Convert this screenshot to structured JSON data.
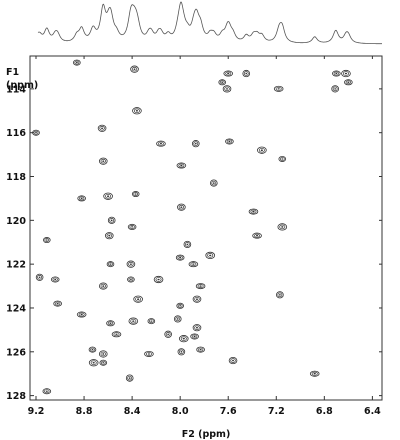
{
  "chart_data": {
    "type": "scatter",
    "subtype": "2D HSQC NMR contour spectrum",
    "title": "",
    "xlabel": "F2 (ppm)",
    "ylabel_line1": "F1",
    "ylabel_line2": "(ppm)",
    "xlim": [
      9.25,
      6.32
    ],
    "ylim": [
      112.5,
      128.2
    ],
    "x_reversed": true,
    "y_increasing_downward": true,
    "grid": false,
    "legend": "none",
    "x_ticks": [
      "9.2",
      "8.8",
      "8.4",
      "8.0",
      "7.6",
      "7.2",
      "6.8",
      "6.4"
    ],
    "x_tick_values": [
      9.2,
      8.8,
      8.4,
      8.0,
      7.6,
      7.2,
      6.8,
      6.4
    ],
    "y_ticks": [
      "114",
      "116",
      "118",
      "120",
      "122",
      "124",
      "126",
      "128"
    ],
    "y_tick_values": [
      114,
      116,
      118,
      120,
      122,
      124,
      126,
      128
    ],
    "projection_trace": "1D proton projection along F2 (top)",
    "contour_color": "#333333",
    "peaks": [
      {
        "x": 8.86,
        "y": 112.8
      },
      {
        "x": 8.38,
        "y": 113.1
      },
      {
        "x": 7.6,
        "y": 113.3
      },
      {
        "x": 7.45,
        "y": 113.3
      },
      {
        "x": 6.7,
        "y": 113.3
      },
      {
        "x": 6.62,
        "y": 113.3
      },
      {
        "x": 7.65,
        "y": 113.7
      },
      {
        "x": 7.61,
        "y": 114.0
      },
      {
        "x": 7.18,
        "y": 114.0
      },
      {
        "x": 6.71,
        "y": 114.0
      },
      {
        "x": 6.6,
        "y": 113.7
      },
      {
        "x": 8.36,
        "y": 115.0
      },
      {
        "x": 9.2,
        "y": 116.0
      },
      {
        "x": 8.65,
        "y": 115.8
      },
      {
        "x": 8.16,
        "y": 116.5
      },
      {
        "x": 7.87,
        "y": 116.5
      },
      {
        "x": 7.59,
        "y": 116.4
      },
      {
        "x": 7.32,
        "y": 116.8
      },
      {
        "x": 7.15,
        "y": 117.2
      },
      {
        "x": 8.64,
        "y": 117.3
      },
      {
        "x": 7.99,
        "y": 117.5
      },
      {
        "x": 7.72,
        "y": 118.3
      },
      {
        "x": 8.82,
        "y": 119.0
      },
      {
        "x": 8.6,
        "y": 118.9
      },
      {
        "x": 8.37,
        "y": 118.8
      },
      {
        "x": 7.99,
        "y": 119.4
      },
      {
        "x": 7.39,
        "y": 119.6
      },
      {
        "x": 8.57,
        "y": 120.0
      },
      {
        "x": 8.4,
        "y": 120.3
      },
      {
        "x": 7.15,
        "y": 120.3
      },
      {
        "x": 9.11,
        "y": 120.9
      },
      {
        "x": 8.59,
        "y": 120.7
      },
      {
        "x": 7.36,
        "y": 120.7
      },
      {
        "x": 7.94,
        "y": 121.1
      },
      {
        "x": 8.0,
        "y": 121.7
      },
      {
        "x": 7.75,
        "y": 121.6
      },
      {
        "x": 8.58,
        "y": 122.0
      },
      {
        "x": 8.41,
        "y": 122.0
      },
      {
        "x": 7.89,
        "y": 122.0
      },
      {
        "x": 9.17,
        "y": 122.6
      },
      {
        "x": 9.04,
        "y": 122.7
      },
      {
        "x": 8.18,
        "y": 122.7
      },
      {
        "x": 8.41,
        "y": 122.7
      },
      {
        "x": 8.64,
        "y": 123.0
      },
      {
        "x": 7.83,
        "y": 123.0
      },
      {
        "x": 7.17,
        "y": 123.4
      },
      {
        "x": 9.02,
        "y": 123.8
      },
      {
        "x": 8.35,
        "y": 123.6
      },
      {
        "x": 8.0,
        "y": 123.9
      },
      {
        "x": 7.86,
        "y": 123.6
      },
      {
        "x": 8.82,
        "y": 124.3
      },
      {
        "x": 8.02,
        "y": 124.5
      },
      {
        "x": 8.58,
        "y": 124.7
      },
      {
        "x": 8.39,
        "y": 124.6
      },
      {
        "x": 8.24,
        "y": 124.6
      },
      {
        "x": 7.86,
        "y": 124.9
      },
      {
        "x": 8.53,
        "y": 125.2
      },
      {
        "x": 8.1,
        "y": 125.2
      },
      {
        "x": 7.88,
        "y": 125.3
      },
      {
        "x": 7.97,
        "y": 125.4
      },
      {
        "x": 8.73,
        "y": 125.9
      },
      {
        "x": 8.64,
        "y": 126.1
      },
      {
        "x": 8.26,
        "y": 126.1
      },
      {
        "x": 7.99,
        "y": 126.0
      },
      {
        "x": 7.83,
        "y": 125.9
      },
      {
        "x": 8.72,
        "y": 126.5
      },
      {
        "x": 8.64,
        "y": 126.5
      },
      {
        "x": 7.56,
        "y": 126.4
      },
      {
        "x": 6.88,
        "y": 127.0
      },
      {
        "x": 8.42,
        "y": 127.2
      },
      {
        "x": 9.11,
        "y": 127.8
      }
    ]
  }
}
